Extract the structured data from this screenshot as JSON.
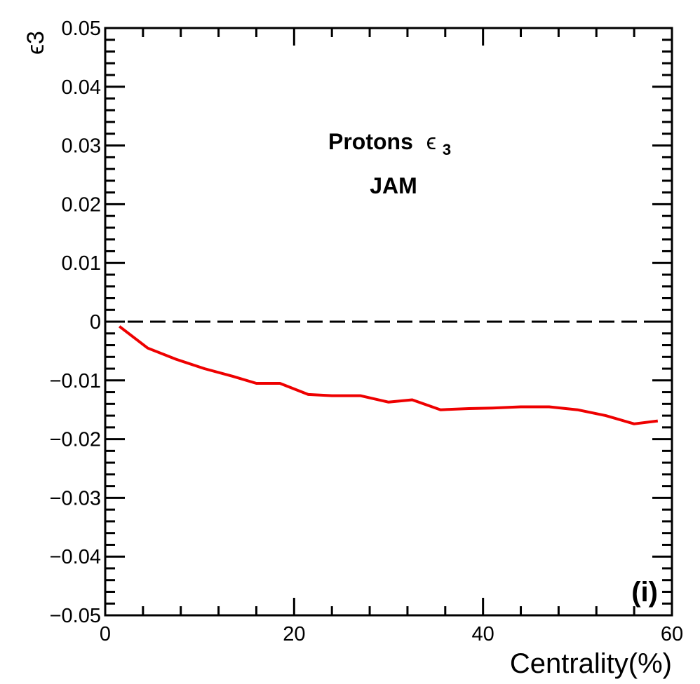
{
  "chart_data": {
    "type": "line",
    "xlabel": "Centrality(%)",
    "ylabel": "ϵ3",
    "xlim": [
      0,
      60
    ],
    "ylim": [
      -0.05,
      0.05
    ],
    "xticks": [
      0,
      20,
      40,
      60
    ],
    "xtick_labels": [
      "0",
      "20",
      "40",
      "60"
    ],
    "yticks": [
      -0.05,
      -0.04,
      -0.03,
      -0.02,
      -0.01,
      0,
      0.01,
      0.02,
      0.03,
      0.04,
      0.05
    ],
    "ytick_labels": [
      "−0.05",
      "−0.04",
      "−0.03",
      "−0.02",
      "−0.01",
      "0",
      "0.01",
      "0.02",
      "0.03",
      "0.04",
      "0.05"
    ],
    "annotations": {
      "line1_text": "Protons",
      "line1_symbol": "ϵ",
      "line1_sub": "3",
      "line2": "JAM",
      "panel": "(i)"
    },
    "reference_line": {
      "y": 0,
      "style": "dashed",
      "color": "#000000"
    },
    "series": [
      {
        "color": "#ee0000",
        "x": [
          1.5,
          4.5,
          7.5,
          10.5,
          13.5,
          16.0,
          18.5,
          21.5,
          24.0,
          27.0,
          30.0,
          32.5,
          35.5,
          38.5,
          41.0,
          44.0,
          47.0,
          50.0,
          53.0,
          56.0,
          58.5
        ],
        "y": [
          -0.0008,
          -0.0045,
          -0.0064,
          -0.008,
          -0.0093,
          -0.0105,
          -0.0105,
          -0.0124,
          -0.0126,
          -0.0126,
          -0.0137,
          -0.0133,
          -0.015,
          -0.0148,
          -0.0147,
          -0.0145,
          -0.0145,
          -0.015,
          -0.016,
          -0.0174,
          -0.0169
        ]
      }
    ]
  }
}
